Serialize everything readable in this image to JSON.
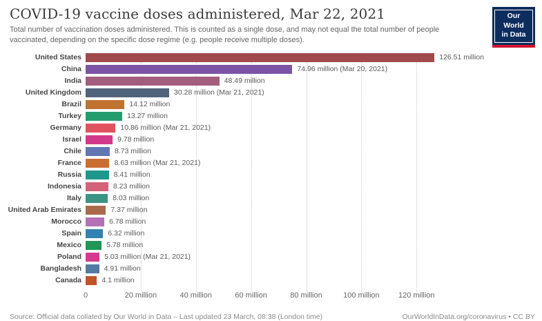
{
  "header": {
    "title": "COVID-19 vaccine doses administered, Mar 22, 2021",
    "subtitle": "Total number of vaccination doses administered. This is counted as a single dose, and may not equal the total number of people vaccinated, depending on the specific dose regime (e.g. people receive multiple doses).",
    "logo": {
      "line1": "Our World",
      "line2": "in Data",
      "bg_color": "#0d2d5e",
      "stripe_color": "#d0122d"
    }
  },
  "chart_data": {
    "type": "bar",
    "orientation": "horizontal",
    "title": "COVID-19 vaccine doses administered, Mar 22, 2021",
    "xlabel": "",
    "ylabel": "",
    "unit": "million doses",
    "xlim": [
      0,
      163
    ],
    "grid": true,
    "categories": [
      "United States",
      "China",
      "India",
      "United Kingdom",
      "Brazil",
      "Turkey",
      "Germany",
      "Israel",
      "Chile",
      "France",
      "Russia",
      "Indonesia",
      "Italy",
      "United Arab Emirates",
      "Morocco",
      "Spain",
      "Mexico",
      "Poland",
      "Bangladesh",
      "Canada"
    ],
    "values": [
      126.51,
      74.96,
      48.49,
      30.28,
      14.12,
      13.27,
      10.86,
      9.78,
      8.73,
      8.63,
      8.41,
      8.23,
      8.03,
      7.37,
      6.78,
      6.32,
      5.78,
      5.03,
      4.91,
      4.1
    ],
    "value_labels": [
      "126.51 million",
      "74.96 million (Mar 20, 2021)",
      "48.49 million",
      "30.28 million (Mar 21, 2021)",
      "14.12 million",
      "13.27 million",
      "10.86 million (Mar 21, 2021)",
      "9.78 million",
      "8.73 million",
      "8.63 million (Mar 21, 2021)",
      "8.41 million",
      "8.23 million",
      "8.03 million",
      "7.37 million",
      "6.78 million",
      "6.32 million",
      "5.78 million",
      "5.03 million (Mar 21, 2021)",
      "4.91 million",
      "4.1 million"
    ],
    "colors": [
      "#a2494e",
      "#7c54a5",
      "#a35e7e",
      "#50637c",
      "#c0722f",
      "#259c6e",
      "#e1525f",
      "#d2398a",
      "#6177b4",
      "#ca6d31",
      "#1f978c",
      "#d26379",
      "#3b9383",
      "#aa6b4b",
      "#b571b5",
      "#3381b0",
      "#219655",
      "#d63a90",
      "#527aa5",
      "#c25227"
    ],
    "x_ticks": [
      {
        "value": 0,
        "label": "0"
      },
      {
        "value": 20,
        "label": "20 million"
      },
      {
        "value": 40,
        "label": "40 million"
      },
      {
        "value": 60,
        "label": "60 million"
      },
      {
        "value": 80,
        "label": "80 million"
      },
      {
        "value": 100,
        "label": "100 million"
      },
      {
        "value": 120,
        "label": "120 million"
      }
    ]
  },
  "footer": {
    "source": "Source: Official data collated by Our World in Data – Last updated 23 March, 08:38 (London time)",
    "link": "OurWorldInData.org/coronavirus • CC BY"
  }
}
